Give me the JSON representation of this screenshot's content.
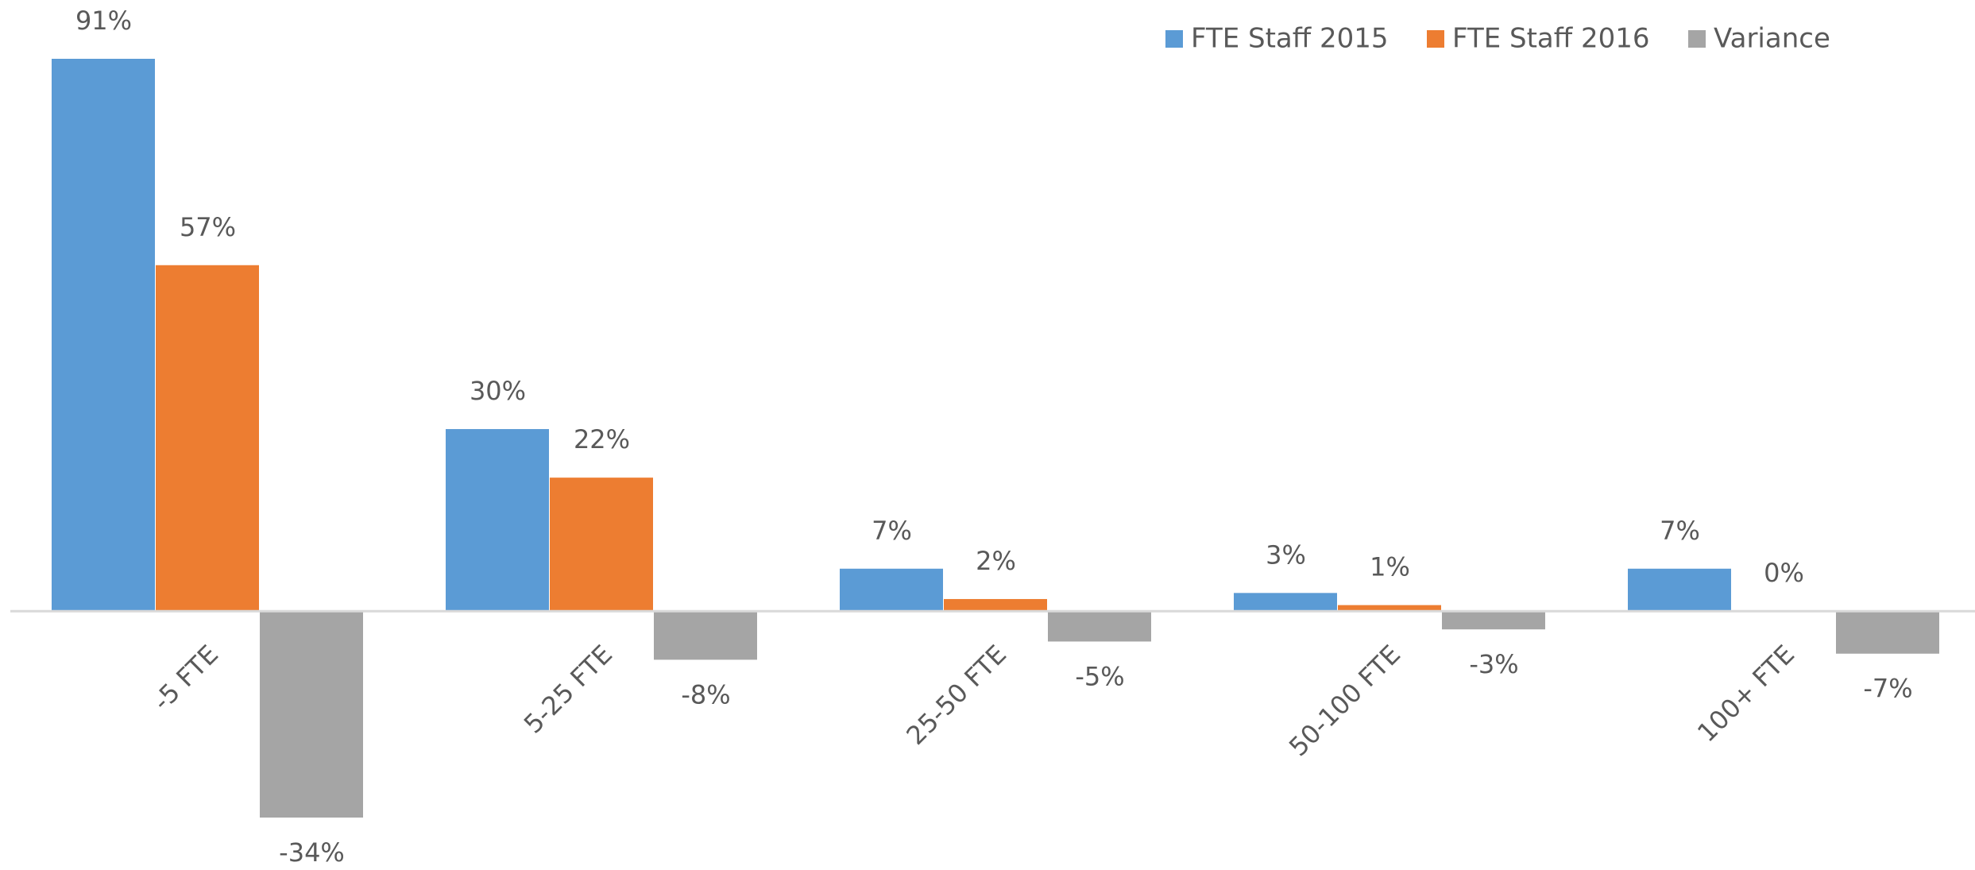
{
  "chart_data": {
    "type": "bar",
    "categories": [
      "-5 FTE",
      "5-25 FTE",
      "25-50 FTE",
      "50-100 FTE",
      "100+ FTE"
    ],
    "series": [
      {
        "name": "FTE Staff 2015",
        "color": "#5b9bd5",
        "values": [
          91,
          30,
          7,
          3,
          7
        ],
        "value_labels": [
          "91%",
          "30%",
          "7%",
          "3%",
          "7%"
        ]
      },
      {
        "name": "FTE Staff 2016",
        "color": "#ed7d31",
        "values": [
          57,
          22,
          2,
          1,
          0
        ],
        "value_labels": [
          "57%",
          "22%",
          "2%",
          "1%",
          "0%"
        ]
      },
      {
        "name": "Variance",
        "color": "#a5a5a5",
        "values": [
          -34,
          -8,
          -5,
          -3,
          -7
        ],
        "value_labels": [
          "-34%",
          "-8%",
          "-5%",
          "-3%",
          "-7%"
        ]
      }
    ],
    "legend": "top-right"
  }
}
